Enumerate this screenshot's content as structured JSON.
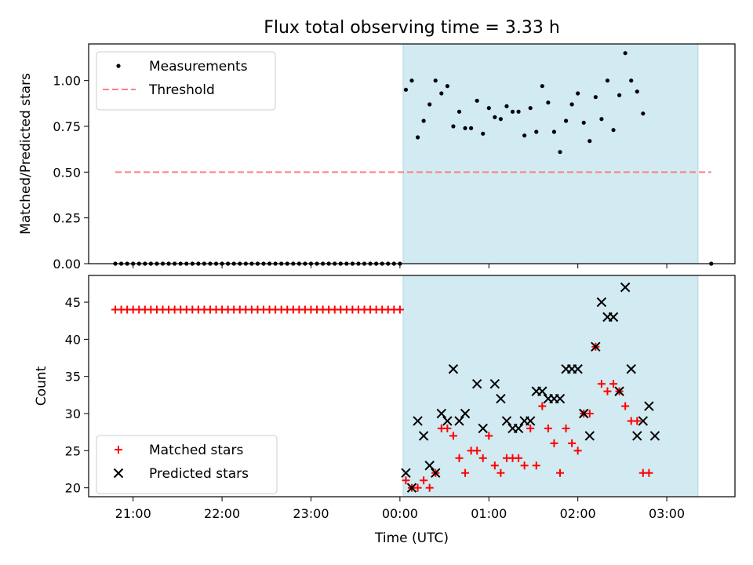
{
  "title": "Flux total observing time = 3.33 h",
  "colors": {
    "shade": "#add8e6",
    "measurement": "#000000",
    "threshold": "#ff7f7f",
    "matched": "#ff0000",
    "predicted": "#000000"
  },
  "chart_data": [
    {
      "type": "scatter",
      "ylabel": "Matched/Predicted stars",
      "ylim": [
        0,
        1.2
      ],
      "yticks": [
        "0.00",
        "0.25",
        "0.50",
        "0.75",
        "1.00"
      ],
      "grid": false,
      "legend_position": "upper-left",
      "series": [
        {
          "name": "Measurements",
          "marker": "dot",
          "points": [
            [
              "20:48",
              0
            ],
            [
              "20:52",
              0
            ],
            [
              "20:56",
              0
            ],
            [
              "21:00",
              0
            ],
            [
              "21:04",
              0
            ],
            [
              "21:08",
              0
            ],
            [
              "21:12",
              0
            ],
            [
              "21:16",
              0
            ],
            [
              "21:20",
              0
            ],
            [
              "21:24",
              0
            ],
            [
              "21:28",
              0
            ],
            [
              "21:32",
              0
            ],
            [
              "21:36",
              0
            ],
            [
              "21:40",
              0
            ],
            [
              "21:44",
              0
            ],
            [
              "21:48",
              0
            ],
            [
              "21:52",
              0
            ],
            [
              "21:56",
              0
            ],
            [
              "22:00",
              0
            ],
            [
              "22:04",
              0
            ],
            [
              "22:08",
              0
            ],
            [
              "22:12",
              0
            ],
            [
              "22:16",
              0
            ],
            [
              "22:20",
              0
            ],
            [
              "22:24",
              0
            ],
            [
              "22:28",
              0
            ],
            [
              "22:32",
              0
            ],
            [
              "22:36",
              0
            ],
            [
              "22:40",
              0
            ],
            [
              "22:44",
              0
            ],
            [
              "22:48",
              0
            ],
            [
              "22:52",
              0
            ],
            [
              "22:56",
              0
            ],
            [
              "23:00",
              0
            ],
            [
              "23:04",
              0
            ],
            [
              "23:08",
              0
            ],
            [
              "23:12",
              0
            ],
            [
              "23:16",
              0
            ],
            [
              "23:20",
              0
            ],
            [
              "23:24",
              0
            ],
            [
              "23:28",
              0
            ],
            [
              "23:32",
              0
            ],
            [
              "23:36",
              0
            ],
            [
              "23:40",
              0
            ],
            [
              "23:44",
              0
            ],
            [
              "23:48",
              0
            ],
            [
              "23:52",
              0
            ],
            [
              "23:56",
              0
            ],
            [
              "00:00",
              0
            ],
            [
              "00:04",
              0.95
            ],
            [
              "00:08",
              1.0
            ],
            [
              "00:12",
              0.69
            ],
            [
              "00:16",
              0.78
            ],
            [
              "00:20",
              0.87
            ],
            [
              "00:24",
              1.0
            ],
            [
              "00:28",
              0.93
            ],
            [
              "00:32",
              0.97
            ],
            [
              "00:36",
              0.75
            ],
            [
              "00:40",
              0.83
            ],
            [
              "00:44",
              0.74
            ],
            [
              "00:48",
              0.74
            ],
            [
              "00:52",
              0.89
            ],
            [
              "00:56",
              0.71
            ],
            [
              "01:00",
              0.85
            ],
            [
              "01:04",
              0.8
            ],
            [
              "01:08",
              0.79
            ],
            [
              "01:12",
              0.86
            ],
            [
              "01:16",
              0.83
            ],
            [
              "01:20",
              0.83
            ],
            [
              "01:24",
              0.7
            ],
            [
              "01:28",
              0.85
            ],
            [
              "01:32",
              0.72
            ],
            [
              "01:36",
              0.97
            ],
            [
              "01:40",
              0.88
            ],
            [
              "01:44",
              0.72
            ],
            [
              "01:48",
              0.61
            ],
            [
              "01:52",
              0.78
            ],
            [
              "01:56",
              0.87
            ],
            [
              "02:00",
              0.93
            ],
            [
              "02:04",
              0.77
            ],
            [
              "02:08",
              0.67
            ],
            [
              "02:12",
              0.91
            ],
            [
              "02:16",
              0.79
            ],
            [
              "02:20",
              1.0
            ],
            [
              "02:24",
              0.73
            ],
            [
              "02:28",
              0.92
            ],
            [
              "02:32",
              1.15
            ],
            [
              "02:36",
              1.0
            ],
            [
              "02:40",
              0.94
            ],
            [
              "02:44",
              0.82
            ],
            [
              "03:30",
              0
            ]
          ]
        },
        {
          "name": "Threshold",
          "style": "dashed",
          "points": [
            [
              "20:48",
              0.5
            ],
            [
              "03:30",
              0.5
            ]
          ]
        }
      ]
    },
    {
      "type": "scatter",
      "ylabel": "Count",
      "xlabel": "Time (UTC)",
      "ylim": [
        18.8,
        48.6
      ],
      "yticks": [
        "20",
        "25",
        "30",
        "35",
        "40",
        "45"
      ],
      "xticks": [
        "21:00",
        "22:00",
        "23:00",
        "00:00",
        "01:00",
        "02:00",
        "03:00"
      ],
      "grid": false,
      "legend_position": "lower-left",
      "series": [
        {
          "name": "Matched stars",
          "marker": "plus",
          "points": [
            [
              "20:48",
              44
            ],
            [
              "20:52",
              44
            ],
            [
              "20:56",
              44
            ],
            [
              "21:00",
              44
            ],
            [
              "21:04",
              44
            ],
            [
              "21:08",
              44
            ],
            [
              "21:12",
              44
            ],
            [
              "21:16",
              44
            ],
            [
              "21:20",
              44
            ],
            [
              "21:24",
              44
            ],
            [
              "21:28",
              44
            ],
            [
              "21:32",
              44
            ],
            [
              "21:36",
              44
            ],
            [
              "21:40",
              44
            ],
            [
              "21:44",
              44
            ],
            [
              "21:48",
              44
            ],
            [
              "21:52",
              44
            ],
            [
              "21:56",
              44
            ],
            [
              "22:00",
              44
            ],
            [
              "22:04",
              44
            ],
            [
              "22:08",
              44
            ],
            [
              "22:12",
              44
            ],
            [
              "22:16",
              44
            ],
            [
              "22:20",
              44
            ],
            [
              "22:24",
              44
            ],
            [
              "22:28",
              44
            ],
            [
              "22:32",
              44
            ],
            [
              "22:36",
              44
            ],
            [
              "22:40",
              44
            ],
            [
              "22:44",
              44
            ],
            [
              "22:48",
              44
            ],
            [
              "22:52",
              44
            ],
            [
              "22:56",
              44
            ],
            [
              "23:00",
              44
            ],
            [
              "23:04",
              44
            ],
            [
              "23:08",
              44
            ],
            [
              "23:12",
              44
            ],
            [
              "23:16",
              44
            ],
            [
              "23:20",
              44
            ],
            [
              "23:24",
              44
            ],
            [
              "23:28",
              44
            ],
            [
              "23:32",
              44
            ],
            [
              "23:36",
              44
            ],
            [
              "23:40",
              44
            ],
            [
              "23:44",
              44
            ],
            [
              "23:48",
              44
            ],
            [
              "23:52",
              44
            ],
            [
              "23:56",
              44
            ],
            [
              "00:00",
              44
            ],
            [
              "00:04",
              21
            ],
            [
              "00:08",
              20
            ],
            [
              "00:12",
              20
            ],
            [
              "00:16",
              21
            ],
            [
              "00:20",
              20
            ],
            [
              "00:24",
              22
            ],
            [
              "00:28",
              28
            ],
            [
              "00:32",
              28
            ],
            [
              "00:36",
              27
            ],
            [
              "00:40",
              24
            ],
            [
              "00:44",
              22
            ],
            [
              "00:48",
              25
            ],
            [
              "00:52",
              25
            ],
            [
              "00:56",
              24
            ],
            [
              "01:00",
              27
            ],
            [
              "01:04",
              23
            ],
            [
              "01:08",
              22
            ],
            [
              "01:12",
              24
            ],
            [
              "01:16",
              24
            ],
            [
              "01:20",
              24
            ],
            [
              "01:24",
              23
            ],
            [
              "01:28",
              28
            ],
            [
              "01:32",
              23
            ],
            [
              "01:36",
              31
            ],
            [
              "01:40",
              28
            ],
            [
              "01:44",
              26
            ],
            [
              "01:48",
              22
            ],
            [
              "01:52",
              28
            ],
            [
              "01:56",
              26
            ],
            [
              "02:00",
              25
            ],
            [
              "02:04",
              30
            ],
            [
              "02:08",
              30
            ],
            [
              "02:12",
              39
            ],
            [
              "02:16",
              34
            ],
            [
              "02:20",
              33
            ],
            [
              "02:24",
              34
            ],
            [
              "02:28",
              33
            ],
            [
              "02:32",
              31
            ],
            [
              "02:36",
              29
            ],
            [
              "02:40",
              29
            ],
            [
              "02:44",
              22
            ],
            [
              "02:48",
              22
            ]
          ]
        },
        {
          "name": "Predicted stars",
          "marker": "x",
          "points": [
            [
              "00:04",
              22
            ],
            [
              "00:08",
              20
            ],
            [
              "00:12",
              29
            ],
            [
              "00:16",
              27
            ],
            [
              "00:20",
              23
            ],
            [
              "00:24",
              22
            ],
            [
              "00:28",
              30
            ],
            [
              "00:32",
              29
            ],
            [
              "00:36",
              36
            ],
            [
              "00:40",
              29
            ],
            [
              "00:44",
              30
            ],
            [
              "00:52",
              34
            ],
            [
              "00:56",
              28
            ],
            [
              "01:04",
              34
            ],
            [
              "01:08",
              32
            ],
            [
              "01:12",
              29
            ],
            [
              "01:16",
              28
            ],
            [
              "01:20",
              28
            ],
            [
              "01:24",
              29
            ],
            [
              "01:28",
              29
            ],
            [
              "01:32",
              33
            ],
            [
              "01:36",
              33
            ],
            [
              "01:40",
              32
            ],
            [
              "01:44",
              32
            ],
            [
              "01:48",
              32
            ],
            [
              "01:52",
              36
            ],
            [
              "01:56",
              36
            ],
            [
              "02:00",
              36
            ],
            [
              "02:04",
              30
            ],
            [
              "02:08",
              27
            ],
            [
              "02:12",
              39
            ],
            [
              "02:16",
              45
            ],
            [
              "02:20",
              43
            ],
            [
              "02:24",
              43
            ],
            [
              "02:28",
              33
            ],
            [
              "02:32",
              47
            ],
            [
              "02:36",
              36
            ],
            [
              "02:40",
              27
            ],
            [
              "02:44",
              29
            ],
            [
              "02:48",
              31
            ],
            [
              "02:52",
              27
            ]
          ]
        }
      ]
    }
  ]
}
